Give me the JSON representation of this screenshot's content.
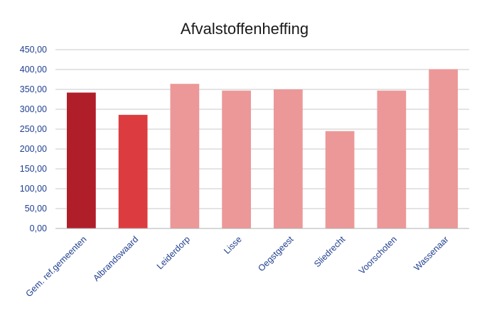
{
  "chart_data": {
    "type": "bar",
    "title": "Afvalstoffenheffing",
    "xlabel": "",
    "ylabel": "",
    "ylim": [
      0,
      450
    ],
    "yticks": [
      "0,00",
      "50,00",
      "100,00",
      "150,00",
      "200,00",
      "250,00",
      "300,00",
      "350,00",
      "400,00",
      "450,00"
    ],
    "categories": [
      "Gem. ref.gemeenten",
      "Albrandswaard",
      "Leiderdorp",
      "Lisse",
      "Oegstgeest",
      "Sliedrecht",
      "Voorschoten",
      "Wassenaar"
    ],
    "values": [
      342,
      286,
      364,
      347,
      350,
      245,
      347,
      401
    ],
    "bar_colors": [
      "#b01e2a",
      "#dc3c40",
      "#ec9898",
      "#ec9898",
      "#ec9898",
      "#ec9898",
      "#ec9898",
      "#ec9898"
    ],
    "grid": true,
    "legend": "none"
  }
}
